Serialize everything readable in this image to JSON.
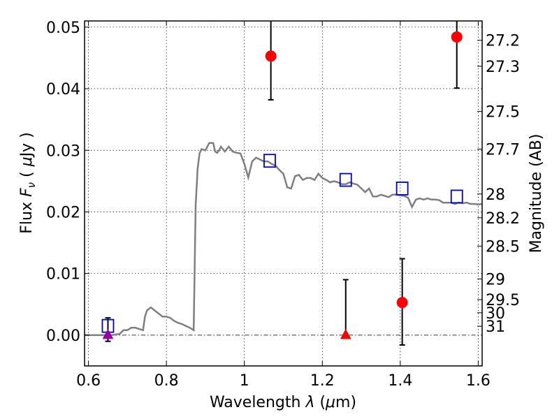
{
  "chart_data": {
    "type": "line",
    "xlabel": "Wavelength  λ (μm)",
    "ylabel": "Flux  F_ν  ( μJy )",
    "ylabel_parts": {
      "a": "Flux ",
      "b": "F",
      "c": "ν",
      "d": "  ( ",
      "e": "μ",
      "f": "Jy )"
    },
    "xlabel_parts": {
      "a": "Wavelength  ",
      "b": "λ",
      "c": " (",
      "d": "μ",
      "e": "m)"
    },
    "y2label": "Magnitude (AB)",
    "xlim": [
      0.59,
      1.61
    ],
    "ylim": [
      -0.005,
      0.051
    ],
    "grid": true,
    "x_ticks": [
      {
        "value": 0.6,
        "label": "0.6"
      },
      {
        "value": 0.8,
        "label": "0.8"
      },
      {
        "value": 1.0,
        "label": "1"
      },
      {
        "value": 1.2,
        "label": "1.2"
      },
      {
        "value": 1.4,
        "label": "1.4"
      },
      {
        "value": 1.6,
        "label": "1.6"
      }
    ],
    "y_ticks": [
      {
        "value": 0.0,
        "label": "0.00"
      },
      {
        "value": 0.01,
        "label": "0.01"
      },
      {
        "value": 0.02,
        "label": "0.02"
      },
      {
        "value": 0.03,
        "label": "0.03"
      },
      {
        "value": 0.04,
        "label": "0.04"
      },
      {
        "value": 0.05,
        "label": "0.05"
      }
    ],
    "mag_ticks": [
      "27.2",
      "27.3",
      "27.5",
      "27.7",
      "28",
      "28.2",
      "28.5",
      "29",
      "29.5",
      "30",
      "31"
    ],
    "sed_model": {
      "color": "#7f7f7f",
      "x": [
        0.59,
        0.6,
        0.62,
        0.64,
        0.66,
        0.68,
        0.69,
        0.7,
        0.71,
        0.72,
        0.73,
        0.74,
        0.745,
        0.75,
        0.76,
        0.77,
        0.78,
        0.79,
        0.8,
        0.81,
        0.82,
        0.83,
        0.84,
        0.85,
        0.86,
        0.87,
        0.875,
        0.88,
        0.885,
        0.89,
        0.9,
        0.91,
        0.92,
        0.925,
        0.93,
        0.935,
        0.94,
        0.95,
        0.96,
        0.97,
        0.98,
        0.99,
        1.0,
        1.01,
        1.02,
        1.03,
        1.04,
        1.05,
        1.06,
        1.07,
        1.08,
        1.09,
        1.1,
        1.11,
        1.12,
        1.13,
        1.14,
        1.15,
        1.16,
        1.17,
        1.18,
        1.19,
        1.2,
        1.21,
        1.22,
        1.23,
        1.24,
        1.25,
        1.26,
        1.27,
        1.28,
        1.29,
        1.3,
        1.31,
        1.32,
        1.33,
        1.34,
        1.35,
        1.36,
        1.37,
        1.38,
        1.39,
        1.4,
        1.41,
        1.42,
        1.43,
        1.44,
        1.45,
        1.46,
        1.47,
        1.48,
        1.49,
        1.5,
        1.51,
        1.52,
        1.53,
        1.54,
        1.55,
        1.56,
        1.57,
        1.58,
        1.59,
        1.6,
        1.61
      ],
      "y": [
        0,
        0,
        0,
        0,
        0,
        0.0002,
        0.0008,
        0.0008,
        0.0012,
        0.0012,
        0.001,
        0.0008,
        0.003,
        0.004,
        0.0045,
        0.004,
        0.0035,
        0.003,
        0.003,
        0.0028,
        0.0023,
        0.002,
        0.0018,
        0.0015,
        0.0012,
        0.0008,
        0.021,
        0.027,
        0.0295,
        0.0302,
        0.03,
        0.0312,
        0.0312,
        0.0298,
        0.0296,
        0.03,
        0.0306,
        0.0298,
        0.0306,
        0.0298,
        0.0296,
        0.0295,
        0.0278,
        0.0256,
        0.0282,
        0.0288,
        0.0285,
        0.0282,
        0.0282,
        0.0278,
        0.0275,
        0.0268,
        0.0262,
        0.024,
        0.0238,
        0.0258,
        0.026,
        0.0252,
        0.0255,
        0.0255,
        0.0252,
        0.0262,
        0.0255,
        0.0252,
        0.0248,
        0.025,
        0.0248,
        0.0245,
        0.0245,
        0.0248,
        0.0246,
        0.0244,
        0.0238,
        0.0232,
        0.0238,
        0.0225,
        0.0225,
        0.0228,
        0.0226,
        0.0224,
        0.0228,
        0.0228,
        0.0227,
        0.0226,
        0.0223,
        0.0208,
        0.022,
        0.0222,
        0.022,
        0.0222,
        0.022,
        0.022,
        0.0219,
        0.0215,
        0.0215,
        0.0215,
        0.0213,
        0.0215,
        0.0214,
        0.0215,
        0.0213,
        0.0213,
        0.0212,
        0.0213
      ]
    },
    "model_photometry": {
      "color": "#0000cc",
      "marker": "open-square",
      "x": [
        0.65,
        1.065,
        1.26,
        1.405,
        1.545
      ],
      "y": [
        0.0015,
        0.0283,
        0.0252,
        0.0238,
        0.0225
      ]
    },
    "detections": {
      "color": "#ff0000",
      "marker": "circle",
      "points": [
        {
          "x": 1.068,
          "y": 0.0453,
          "ylo": 0.0382,
          "yhi": 0.051
        },
        {
          "x": 1.405,
          "y": 0.0053,
          "ylo": -0.0016,
          "yhi": 0.0124
        },
        {
          "x": 1.545,
          "y": 0.0484,
          "ylo": 0.0401,
          "yhi": 0.051
        }
      ]
    },
    "upper_limits": {
      "marker": "triangle",
      "points": [
        {
          "x": 0.65,
          "y": 0.0,
          "ylo": -0.001,
          "yhi": 0.0028,
          "color": "#990099"
        },
        {
          "x": 1.26,
          "y": 0.0,
          "ylo": 0.0,
          "yhi": 0.009,
          "color": "#ff0000"
        }
      ]
    },
    "zero_line": {
      "y": 0.0,
      "style": "dash-dot"
    }
  }
}
